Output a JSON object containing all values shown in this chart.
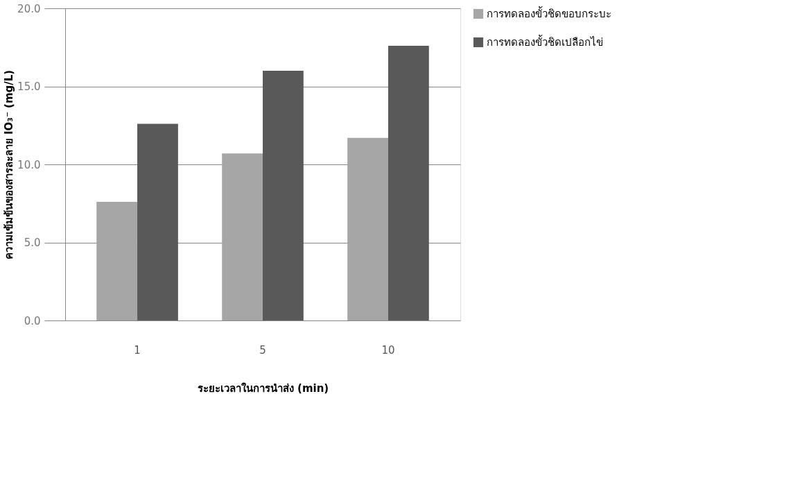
{
  "chart_data": {
    "type": "bar",
    "xlabel": "ระยะเวลาในการนำส่ง (min)",
    "ylabel": "ความเข้มข้นของสารละลาย IO₃⁻ (mg/L)",
    "categories": [
      "1",
      "5",
      "10"
    ],
    "series": [
      {
        "name": "การทดลองขั้วชิดขอบกระบะ",
        "color": "#a6a6a6",
        "values": [
          7.6,
          10.7,
          11.7
        ]
      },
      {
        "name": "การทดลองขั้วชิดเปลือกไข่",
        "color": "#595959",
        "values": [
          12.6,
          16.0,
          17.6
        ]
      }
    ],
    "ylim": [
      0,
      20
    ],
    "yticks": [
      {
        "value": 0,
        "label": "0.0"
      },
      {
        "value": 5,
        "label": "5.0"
      },
      {
        "value": 10,
        "label": "10.0"
      },
      {
        "value": 15,
        "label": "15.0"
      },
      {
        "value": 20,
        "label": "20.0"
      }
    ],
    "grid": "y",
    "legend": "right"
  }
}
